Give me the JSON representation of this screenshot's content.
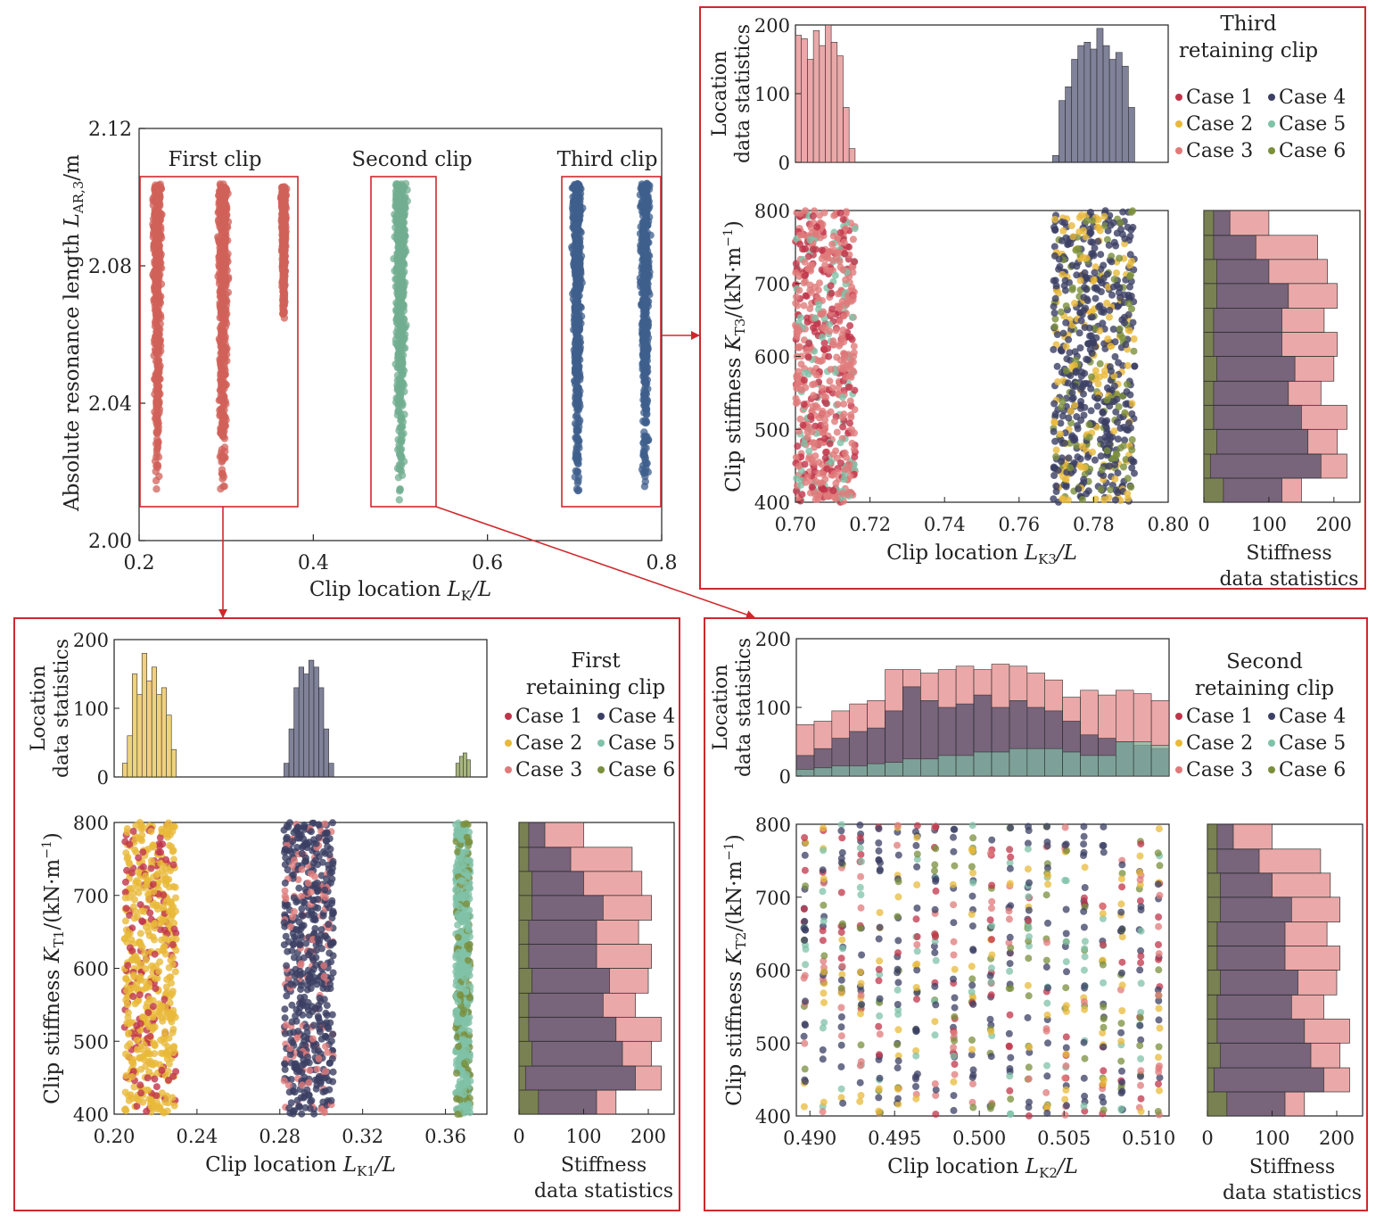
{
  "colors": {
    "case1": "#c0344a",
    "case2": "#e8b93a",
    "case3": "#e07a7a",
    "case4": "#3b3f63",
    "case5": "#7fc2a8",
    "case6": "#7a8f3c",
    "red_scatter": "#d0625a",
    "green_scatter": "#72ad90",
    "blue_scatter": "#3f5f8c",
    "frame": "#d0282c"
  },
  "chart_data": [
    {
      "id": "overview",
      "type": "scatter",
      "ylabel_text": "Absolute resonance length ",
      "ylabel_sym": "L",
      "ylabel_sub": "AR,3",
      "ylabel_unit": "/m",
      "xlabel_text": "Clip location ",
      "xlabel_sym": "L",
      "xlabel_sub": "K",
      "xlabel_unit": "/L",
      "xlim": [
        0.2,
        0.8
      ],
      "ylim": [
        2.0,
        2.12
      ],
      "xticks": [
        "0.2",
        "0.4",
        "0.6",
        "0.8"
      ],
      "yticks": [
        "2.00",
        "2.04",
        "2.08",
        "2.12"
      ],
      "annotations": [
        "First clip",
        "Second clip",
        "Third clip"
      ],
      "clusters": [
        {
          "group": "First clip",
          "x_center": 0.221,
          "x_spread": 0.007,
          "y_range": [
            2.012,
            2.104
          ]
        },
        {
          "group": "First clip",
          "x_center": 0.296,
          "x_spread": 0.009,
          "y_range": [
            2.012,
            2.104
          ]
        },
        {
          "group": "First clip",
          "x_center": 0.366,
          "x_spread": 0.004,
          "y_range": [
            2.064,
            2.103
          ]
        },
        {
          "group": "Second clip",
          "x_center": 0.5,
          "x_spread": 0.01,
          "y_range": [
            2.011,
            2.104
          ]
        },
        {
          "group": "Third clip",
          "x_center": 0.703,
          "x_spread": 0.008,
          "y_range": [
            2.013,
            2.104
          ]
        },
        {
          "group": "Third clip",
          "x_center": 0.781,
          "x_spread": 0.008,
          "y_range": [
            2.012,
            2.104
          ]
        }
      ]
    },
    {
      "id": "third",
      "type": "scatter",
      "title_lines": [
        "Third",
        "retaining clip"
      ],
      "legend": [
        "Case 1",
        "Case 4",
        "Case 2",
        "Case 5",
        "Case 3",
        "Case 6"
      ],
      "hist_ylabel": [
        "Location",
        "data statistics"
      ],
      "hist_ylim": [
        0,
        200
      ],
      "hist_yticks": [
        "0",
        "100",
        "200"
      ],
      "scatter_ylabel_text": "Clip stiffness ",
      "scatter_ylabel_sym": "K",
      "scatter_ylabel_sub": "T3",
      "scatter_ylabel_unit": "/(kN·m",
      "scatter_ylabel_sup": "−1",
      "scatter_ylabel_close": ")",
      "xlabel_text": "Clip location ",
      "xlabel_sym": "L",
      "xlabel_sub": "K3",
      "xlabel_unit": "/L",
      "xlim": [
        0.7,
        0.8
      ],
      "ylim": [
        400,
        800
      ],
      "xticks": [
        "0.70",
        "0.72",
        "0.74",
        "0.76",
        "0.78",
        "0.80"
      ],
      "yticks": [
        "400",
        "500",
        "600",
        "700",
        "800"
      ],
      "stiff_xticks": [
        "0",
        "100",
        "200"
      ],
      "stiff_xlabel": [
        "Stiffness",
        "data statistics"
      ],
      "clusters": [
        {
          "x_range": [
            0.7,
            0.716
          ],
          "cases": [
            "case3",
            "case1",
            "case5"
          ]
        },
        {
          "x_range": [
            0.769,
            0.791
          ],
          "cases": [
            "case4",
            "case2",
            "case6"
          ]
        }
      ],
      "hist_bars": [
        {
          "case": "case3",
          "x_range": [
            0.7,
            0.716
          ],
          "heights": [
            185,
            180,
            150,
            192,
            170,
            200,
            175,
            155,
            80,
            20
          ]
        },
        {
          "case": "case4",
          "x_range": [
            0.769,
            0.791
          ],
          "heights": [
            10,
            90,
            110,
            150,
            170,
            175,
            165,
            195,
            170,
            150,
            160,
            140,
            80
          ]
        }
      ]
    },
    {
      "id": "first",
      "type": "scatter",
      "title_lines": [
        "First",
        "retaining clip"
      ],
      "legend": [
        "Case 1",
        "Case 4",
        "Case 2",
        "Case 5",
        "Case 3",
        "Case 6"
      ],
      "hist_ylabel": [
        "Location",
        "data statistics"
      ],
      "hist_ylim": [
        0,
        200
      ],
      "hist_yticks": [
        "0",
        "100",
        "200"
      ],
      "scatter_ylabel_text": "Clip stiffness ",
      "scatter_ylabel_sym": "K",
      "scatter_ylabel_sub": "T1",
      "scatter_ylabel_unit": "/(kN·m",
      "scatter_ylabel_sup": "−1",
      "scatter_ylabel_close": ")",
      "xlabel_text": "Clip location ",
      "xlabel_sym": "L",
      "xlabel_sub": "K1",
      "xlabel_unit": "/L",
      "xlim": [
        0.2,
        0.38
      ],
      "ylim": [
        400,
        800
      ],
      "xticks": [
        "0.20",
        "0.24",
        "0.28",
        "0.32",
        "0.36"
      ],
      "yticks": [
        "400",
        "500",
        "600",
        "700",
        "800"
      ],
      "stiff_xticks": [
        "0",
        "100",
        "200"
      ],
      "stiff_xlabel": [
        "Stiffness",
        "data statistics"
      ],
      "clusters": [
        {
          "x_range": [
            0.205,
            0.23
          ],
          "cases": [
            "case2",
            "case1",
            "case2"
          ]
        },
        {
          "x_range": [
            0.282,
            0.306
          ],
          "cases": [
            "case4",
            "case3",
            "case4"
          ]
        },
        {
          "x_range": [
            0.365,
            0.372
          ],
          "cases": [
            "case5",
            "case6",
            "case5"
          ]
        }
      ],
      "hist_bars": [
        {
          "case": "case2",
          "x_range": [
            0.204,
            0.23
          ],
          "heights": [
            20,
            60,
            150,
            120,
            180,
            140,
            160,
            120,
            130,
            90,
            40
          ]
        },
        {
          "case": "case4",
          "x_range": [
            0.282,
            0.306
          ],
          "heights": [
            20,
            70,
            130,
            160,
            150,
            170,
            160,
            130,
            70,
            20
          ]
        },
        {
          "case": "case6",
          "x_range": [
            0.365,
            0.372
          ],
          "heights": [
            20,
            30,
            35,
            25
          ]
        }
      ]
    },
    {
      "id": "second",
      "type": "scatter",
      "title_lines": [
        "Second",
        "retaining clip"
      ],
      "legend": [
        "Case 1",
        "Case 4",
        "Case 2",
        "Case 5",
        "Case 3",
        "Case 6"
      ],
      "hist_ylabel": [
        "Location",
        "data statistics"
      ],
      "hist_ylim": [
        0,
        200
      ],
      "hist_yticks": [
        "0",
        "100",
        "200"
      ],
      "scatter_ylabel_text": "Clip stiffness ",
      "scatter_ylabel_sym": "K",
      "scatter_ylabel_sub": "T2",
      "scatter_ylabel_unit": "/(kN·m",
      "scatter_ylabel_sup": "−1",
      "scatter_ylabel_close": ")",
      "xlabel_text": "Clip location ",
      "xlabel_sym": "L",
      "xlabel_sub": "K2",
      "xlabel_unit": "/L",
      "xlim": [
        0.4892,
        0.5112
      ],
      "ylim": [
        400,
        800
      ],
      "xticks": [
        "0.490",
        "0.495",
        "0.500",
        "0.505",
        "0.510"
      ],
      "yticks": [
        "400",
        "500",
        "600",
        "700",
        "800"
      ],
      "stiff_xticks": [
        "0",
        "100",
        "200"
      ],
      "stiff_xlabel": [
        "Stiffness",
        "data statistics"
      ],
      "hist_bars": [
        {
          "case": "case3",
          "x_range": [
            0.4892,
            0.5112
          ],
          "heights": [
            75,
            80,
            95,
            105,
            110,
            155,
            155,
            150,
            155,
            160,
            155,
            163,
            160,
            150,
            140,
            115,
            125,
            118,
            125,
            120,
            110
          ]
        },
        {
          "case": "case4",
          "x_range": [
            0.4892,
            0.5112
          ],
          "heights": [
            30,
            40,
            55,
            65,
            70,
            95,
            130,
            110,
            100,
            105,
            118,
            100,
            110,
            100,
            95,
            80,
            60,
            55,
            50,
            45,
            40
          ]
        },
        {
          "case": "case5",
          "x_range": [
            0.4892,
            0.5112
          ],
          "heights": [
            10,
            12,
            15,
            15,
            18,
            20,
            25,
            25,
            30,
            30,
            35,
            35,
            40,
            40,
            40,
            35,
            30,
            30,
            50,
            50,
            45
          ]
        }
      ]
    }
  ],
  "stiffness_hist": {
    "bins": [
      400,
      433,
      466,
      500,
      533,
      566,
      600,
      633,
      666,
      700,
      733,
      766,
      800
    ],
    "case3": [
      150,
      220,
      205,
      220,
      180,
      200,
      205,
      185,
      205,
      190,
      175,
      100
    ],
    "case4": [
      120,
      180,
      160,
      150,
      130,
      140,
      120,
      120,
      130,
      100,
      80,
      40
    ],
    "case6": [
      30,
      10,
      20,
      15,
      15,
      20,
      15,
      15,
      20,
      20,
      15,
      15
    ]
  }
}
